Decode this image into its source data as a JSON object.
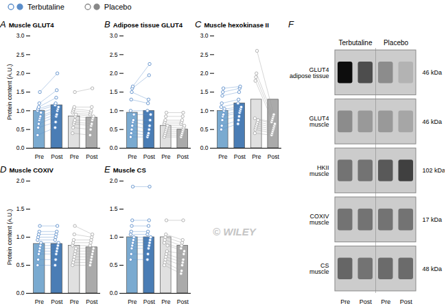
{
  "chart_data": [
    {
      "type": "bar",
      "panel_label": "A",
      "title": "Muscle GLUT4",
      "ylabel": "Protein content (A.U.)",
      "categories": [
        "Pre",
        "Post",
        "Pre",
        "Post"
      ],
      "values": [
        1.0,
        1.15,
        0.85,
        0.82
      ],
      "colors": [
        "#7aaad0",
        "#4a7db5",
        "#e0e0e0",
        "#aaaaaa"
      ],
      "points": [
        [
          0.35,
          0.55,
          0.65,
          0.75,
          0.8,
          0.85,
          0.95,
          1.0,
          1.05,
          1.1,
          1.2,
          1.5
        ],
        [
          0.55,
          0.7,
          0.85,
          0.9,
          1.0,
          1.05,
          1.1,
          1.15,
          1.2,
          1.35,
          1.55,
          2.0
        ],
        [
          0.4,
          0.55,
          0.65,
          0.7,
          0.75,
          0.85,
          0.9,
          0.95,
          1.0,
          1.05,
          1.1,
          1.5
        ],
        [
          0.35,
          0.5,
          0.6,
          0.65,
          0.75,
          0.8,
          0.85,
          0.9,
          0.95,
          1.0,
          1.1,
          1.6
        ]
      ],
      "point_colors": [
        "#5b8dc9",
        "#5b8dc9",
        "#aaaaaa",
        "#aaaaaa"
      ],
      "pair_line_colors": [
        "#5b8dc9",
        "#999999"
      ],
      "ylim": [
        0,
        3.0
      ],
      "yticks": [
        {
          "value": 0,
          "label": "0.0"
        },
        0.5,
        {
          "value": 1,
          "label": "1.0"
        },
        1.5,
        {
          "value": 2,
          "label": "2.0"
        },
        2.5,
        {
          "value": 3,
          "label": "3.0"
        }
      ]
    },
    {
      "type": "bar",
      "panel_label": "B",
      "title": "Adipose tissue GLUT4",
      "categories": [
        "Pre",
        "Post",
        "Pre",
        "Post"
      ],
      "values": [
        0.95,
        1.0,
        0.6,
        0.5
      ],
      "colors": [
        "#7aaad0",
        "#4a7db5",
        "#e0e0e0",
        "#aaaaaa"
      ],
      "points": [
        [
          0.3,
          0.4,
          0.5,
          0.6,
          0.7,
          0.75,
          0.9,
          1.0,
          1.3,
          1.5,
          1.6,
          1.65
        ],
        [
          0.3,
          0.35,
          0.4,
          0.5,
          0.6,
          0.75,
          0.9,
          1.0,
          1.2,
          1.3,
          1.95,
          2.25
        ],
        [
          0.3,
          0.35,
          0.4,
          0.45,
          0.5,
          0.55,
          0.6,
          0.65,
          0.7,
          0.75,
          0.85,
          0.95
        ],
        [
          0.3,
          0.35,
          0.4,
          0.45,
          0.5,
          0.55,
          0.6,
          0.65,
          0.7,
          0.75,
          0.85,
          0.95
        ]
      ],
      "point_colors": [
        "#5b8dc9",
        "#5b8dc9",
        "#aaaaaa",
        "#aaaaaa"
      ],
      "pair_line_colors": [
        "#5b8dc9",
        "#999999"
      ],
      "ylim": [
        0,
        3.0
      ],
      "yticks": [
        {
          "value": 0,
          "label": "0.0"
        },
        0.5,
        {
          "value": 1,
          "label": "1.0"
        },
        1.5,
        {
          "value": 2,
          "label": "2.0"
        },
        2.5,
        {
          "value": 3,
          "label": "3.0"
        }
      ]
    },
    {
      "type": "bar",
      "panel_label": "C",
      "title": "Muscle hexokinase II",
      "categories": [
        "Pre",
        "Post",
        "Pre",
        "Post"
      ],
      "values": [
        1.0,
        1.2,
        1.3,
        1.3
      ],
      "colors": [
        "#7aaad0",
        "#4a7db5",
        "#e0e0e0",
        "#aaaaaa"
      ],
      "points": [
        [
          0.5,
          0.6,
          0.75,
          0.85,
          0.9,
          1.0,
          1.05,
          1.1,
          1.2,
          1.4,
          1.5,
          1.6
        ],
        [
          0.65,
          0.75,
          0.85,
          0.95,
          1.0,
          1.05,
          1.1,
          1.2,
          1.3,
          1.5,
          1.6,
          1.65
        ],
        [
          0.4,
          0.5,
          0.55,
          0.6,
          0.65,
          0.7,
          0.75,
          0.8,
          1.8,
          1.9,
          2.0,
          2.6
        ],
        [
          0.35,
          0.4,
          0.45,
          0.5,
          0.55,
          0.6,
          0.65,
          0.7,
          0.75,
          0.8,
          0.85,
          0.9
        ]
      ],
      "point_colors": [
        "#5b8dc9",
        "#5b8dc9",
        "#aaaaaa",
        "#aaaaaa"
      ],
      "pair_line_colors": [
        "#5b8dc9",
        "#999999"
      ],
      "ylim": [
        0,
        3.0
      ],
      "yticks": [
        {
          "value": 0,
          "label": "0.0"
        },
        0.5,
        {
          "value": 1,
          "label": "1.0"
        },
        1.5,
        {
          "value": 2,
          "label": "2.0"
        },
        2.5,
        {
          "value": 3,
          "label": "3.0"
        }
      ]
    },
    {
      "type": "bar",
      "panel_label": "D",
      "title": "Muscle COXIV",
      "ylabel": "Protein content (A.U.)",
      "categories": [
        "Pre",
        "Post",
        "Pre",
        "Post"
      ],
      "values": [
        0.88,
        0.88,
        0.85,
        0.82
      ],
      "colors": [
        "#7aaad0",
        "#4a7db5",
        "#e0e0e0",
        "#aaaaaa"
      ],
      "points": [
        [
          0.5,
          0.6,
          0.7,
          0.75,
          0.8,
          0.85,
          0.9,
          0.95,
          1.0,
          1.05,
          1.1,
          1.2
        ],
        [
          0.5,
          0.6,
          0.7,
          0.75,
          0.8,
          0.85,
          0.9,
          0.95,
          1.0,
          1.05,
          1.1,
          1.2
        ],
        [
          0.5,
          0.55,
          0.6,
          0.65,
          0.7,
          0.75,
          0.8,
          0.85,
          0.9,
          0.95,
          1.05,
          1.2
        ],
        [
          0.5,
          0.55,
          0.6,
          0.65,
          0.7,
          0.75,
          0.8,
          0.85,
          0.9,
          0.95,
          1.0,
          1.05
        ]
      ],
      "point_colors": [
        "#5b8dc9",
        "#5b8dc9",
        "#aaaaaa",
        "#aaaaaa"
      ],
      "pair_line_colors": [
        "#5b8dc9",
        "#999999"
      ],
      "ylim": [
        0,
        2.0
      ],
      "yticks": [
        {
          "value": 0,
          "label": "0.0"
        },
        0.5,
        {
          "value": 1,
          "label": "1.0"
        },
        1.5,
        {
          "value": 2,
          "label": "2.0"
        }
      ]
    },
    {
      "type": "bar",
      "panel_label": "E",
      "title": "Muscle CS",
      "categories": [
        "Pre",
        "Post",
        "Pre",
        "Post"
      ],
      "values": [
        1.0,
        1.0,
        1.0,
        0.85
      ],
      "colors": [
        "#7aaad0",
        "#4a7db5",
        "#e0e0e0",
        "#aaaaaa"
      ],
      "points": [
        [
          0.6,
          0.7,
          0.8,
          0.85,
          0.9,
          0.95,
          1.0,
          1.05,
          1.1,
          1.2,
          1.3,
          1.9
        ],
        [
          0.6,
          0.7,
          0.8,
          0.85,
          0.9,
          0.95,
          1.0,
          1.05,
          1.1,
          1.2,
          1.3,
          1.9
        ],
        [
          0.5,
          0.55,
          0.6,
          0.65,
          0.7,
          0.75,
          0.85,
          0.9,
          0.95,
          1.0,
          1.05,
          1.3
        ],
        [
          0.35,
          0.4,
          0.5,
          0.55,
          0.6,
          0.7,
          0.75,
          0.8,
          0.85,
          0.9,
          0.95,
          1.3
        ]
      ],
      "point_colors": [
        "#5b8dc9",
        "#5b8dc9",
        "#aaaaaa",
        "#aaaaaa"
      ],
      "pair_line_colors": [
        "#5b8dc9",
        "#999999"
      ],
      "ylim": [
        0,
        2.0
      ],
      "yticks": [
        {
          "value": 0,
          "label": "0.0"
        },
        0.5,
        {
          "value": 1,
          "label": "1.0"
        },
        1.5,
        {
          "value": 2,
          "label": "2.0"
        }
      ]
    },
    {
      "type": "blot",
      "panel_label": "F",
      "groups": [
        "Terbutaline",
        "Placebo"
      ],
      "categories": [
        "Pre",
        "Post",
        "Pre",
        "Post"
      ],
      "rows": [
        {
          "label": "GLUT4\nadipose tissue",
          "right_label": "46 kDa",
          "values": [
            0.05,
            0.3,
            0.55,
            0.7
          ]
        },
        {
          "label": "GLUT4\nmuscle",
          "right_label": "46 kDa",
          "values": [
            0.55,
            0.6,
            0.6,
            0.65
          ]
        },
        {
          "label": "HKII\nmuscle",
          "right_label": "102 kDa",
          "values": [
            0.45,
            0.45,
            0.35,
            0.25
          ]
        },
        {
          "label": "COXIV\nmuscle",
          "right_label": "17 kDa",
          "values": [
            0.45,
            0.45,
            0.45,
            0.45
          ]
        },
        {
          "label": "CS\nmuscle",
          "right_label": "48 kDa",
          "values": [
            0.4,
            0.45,
            0.42,
            0.42
          ]
        }
      ]
    }
  ],
  "legend": [
    {
      "name": "Terbutaline",
      "color": "#5b8dc9"
    },
    {
      "name": "Placebo",
      "color": "#888888"
    }
  ],
  "annotations": [
    "© WILEY"
  ]
}
